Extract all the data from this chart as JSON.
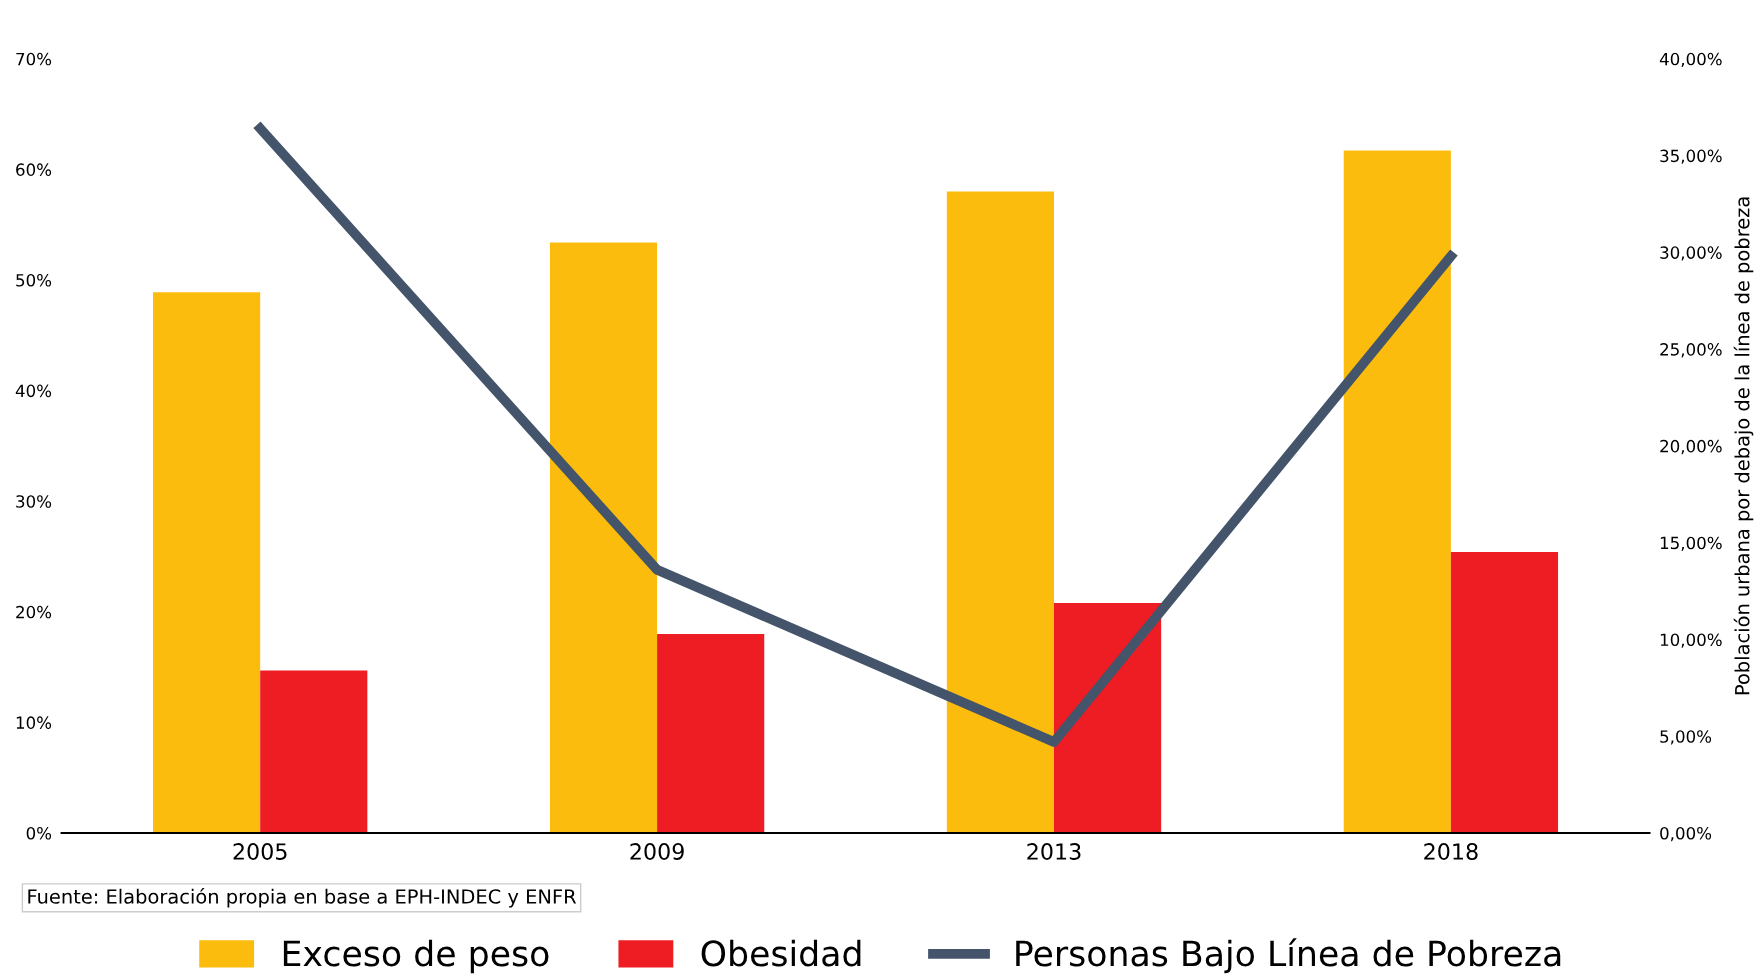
{
  "chart_data": {
    "type": "bar",
    "categories": [
      "2005",
      "2009",
      "2013",
      "2018"
    ],
    "series": [
      {
        "name": "Exceso de peso",
        "color": "#fbbc0e",
        "values": [
          48.9,
          53.4,
          58.0,
          61.7
        ]
      },
      {
        "name": "Obesidad",
        "color": "#ee1d23",
        "values": [
          14.7,
          18.0,
          20.8,
          25.4
        ]
      },
      {
        "name": "Personas Bajo Línea de Pobreza",
        "type": "line",
        "axis": "y2",
        "color": "#44546a",
        "values": [
          36.4,
          13.6,
          4.7,
          29.8
        ]
      }
    ],
    "ylim": [
      0,
      70
    ],
    "yticks": [
      {
        "value": 0,
        "label": "0%"
      },
      {
        "value": 10,
        "label": "10%"
      },
      {
        "value": 20,
        "label": "20%"
      },
      {
        "value": 30,
        "label": "30%"
      },
      {
        "value": 40,
        "label": "40%"
      },
      {
        "value": 50,
        "label": "50%"
      },
      {
        "value": 60,
        "label": "60%"
      },
      {
        "value": 70,
        "label": "70%"
      }
    ],
    "y2lim": [
      0,
      40
    ],
    "y2ticks": [
      {
        "value": 0,
        "label": "0,00%"
      },
      {
        "value": 5,
        "label": "5,00%"
      },
      {
        "value": 10,
        "label": "10,00%"
      },
      {
        "value": 15,
        "label": "15,00%"
      },
      {
        "value": 20,
        "label": "20,00%"
      },
      {
        "value": 25,
        "label": "25,00%"
      },
      {
        "value": 30,
        "label": "30,00%"
      },
      {
        "value": 35,
        "label": "35,00%"
      },
      {
        "value": 40,
        "label": "40,00%"
      }
    ],
    "y2label": "Población urbana por debajo de la línea de pobreza",
    "annotations": [
      "Fuente: Elaboración propia en base a EPH-INDEC y ENFR"
    ],
    "legend": "bottom",
    "grid": false
  }
}
